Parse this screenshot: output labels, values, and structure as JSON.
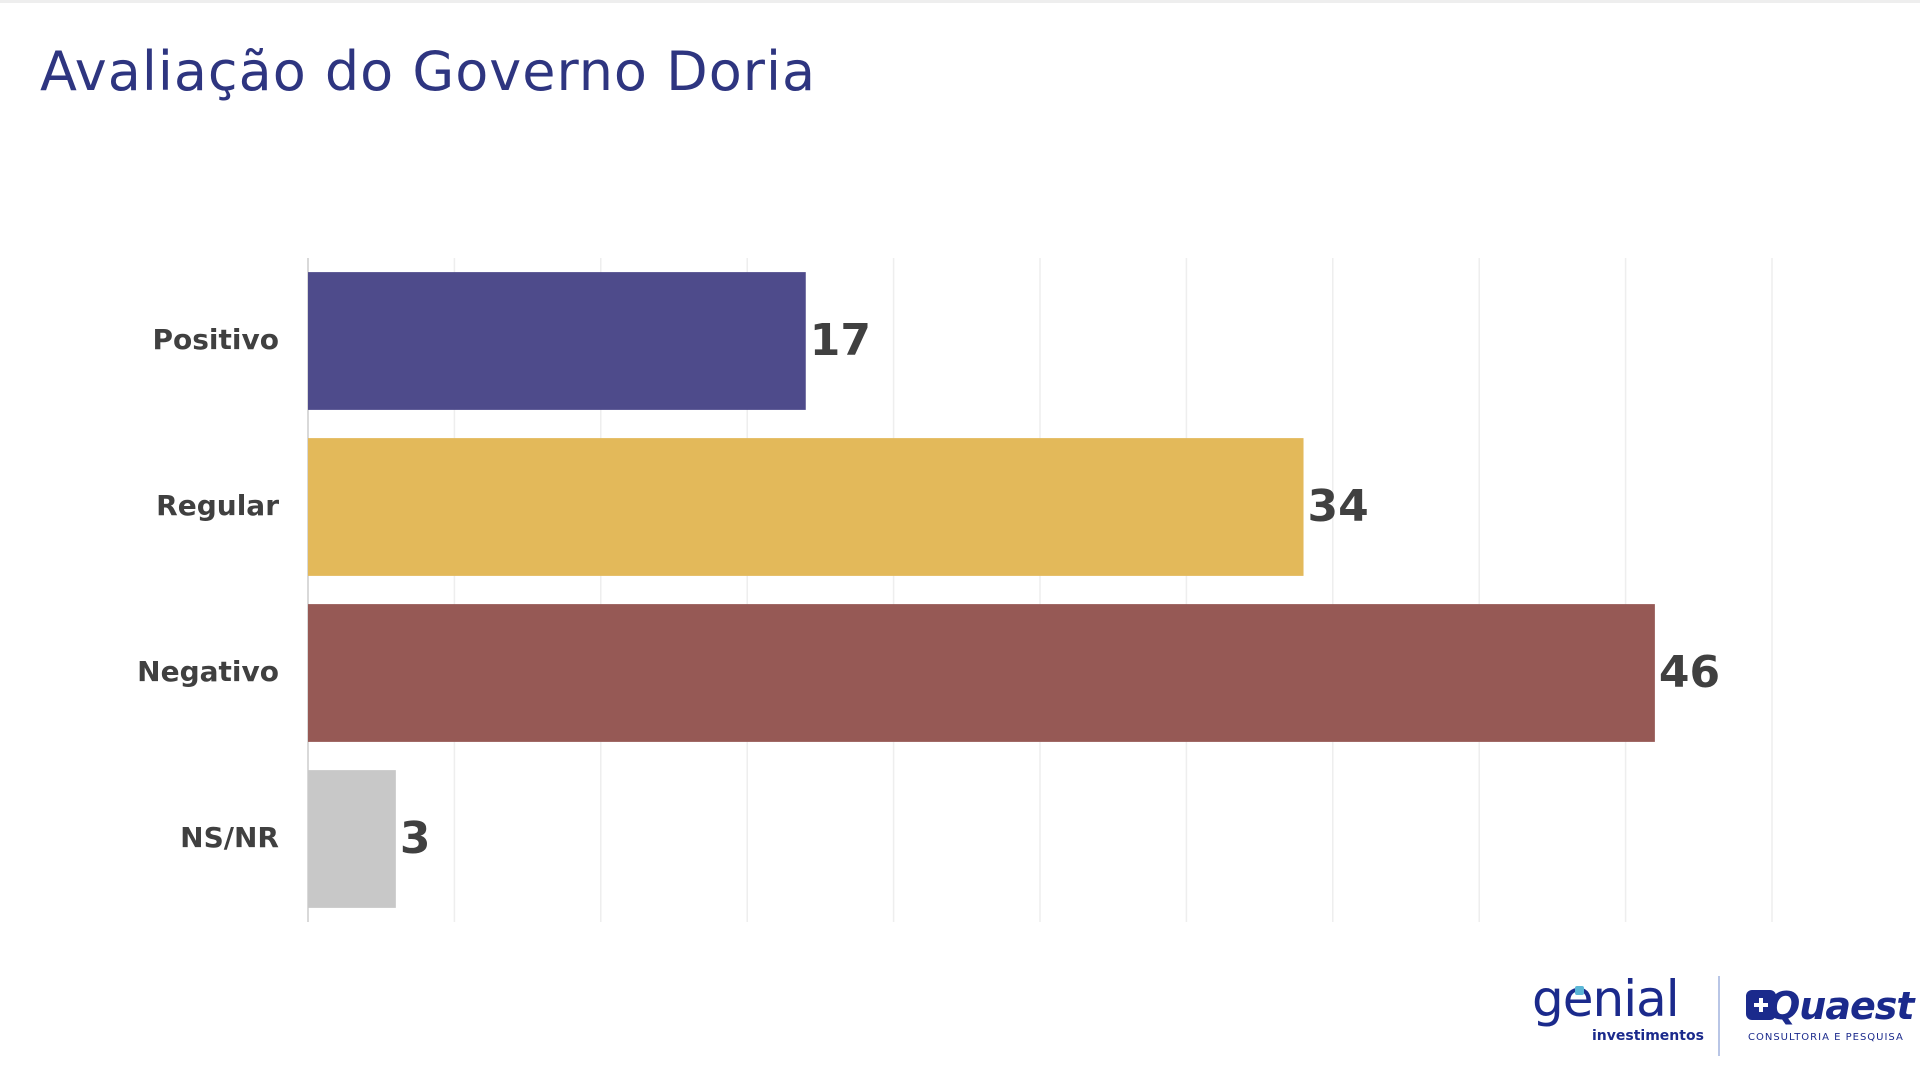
{
  "header": {
    "title": "Avaliação do Governo Doria"
  },
  "chart_data": {
    "type": "bar",
    "orientation": "horizontal",
    "title": "Avaliação do Governo Doria",
    "categories": [
      "Positivo",
      "Regular",
      "Negativo",
      "NS/NR"
    ],
    "values": [
      17,
      34,
      46,
      3
    ],
    "colors": [
      "#4e4b8b",
      "#e3b95a",
      "#965955",
      "#c8c8c8"
    ],
    "xlim": [
      0,
      50
    ],
    "grid": true,
    "legend": "none"
  },
  "logos": {
    "genial": {
      "name": "genial",
      "sub": "investimentos"
    },
    "quaest": {
      "name": "Quaest",
      "sub": "CONSULTORIA E PESQUISA"
    }
  }
}
